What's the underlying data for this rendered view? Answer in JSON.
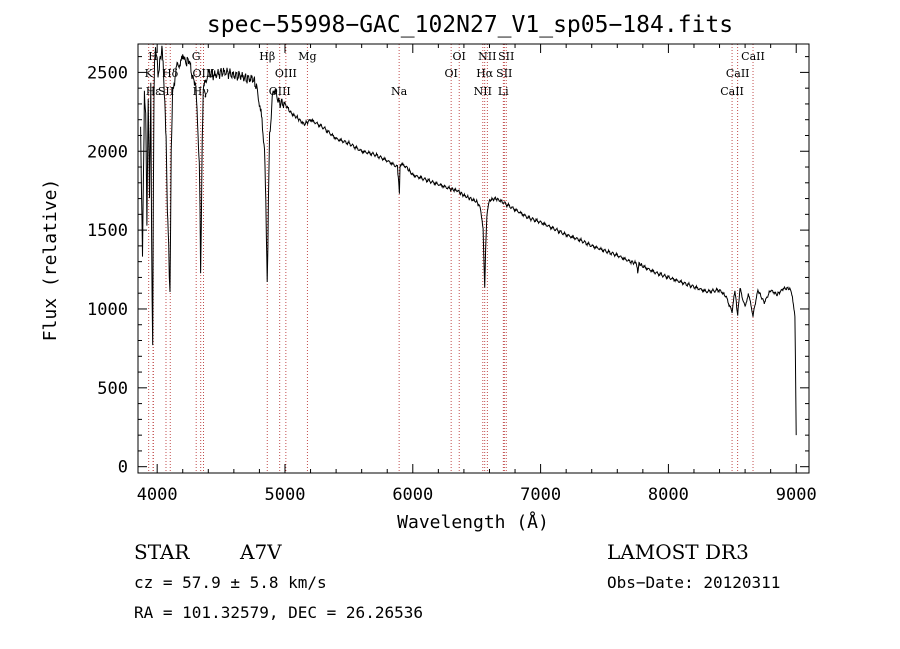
{
  "chart_data": {
    "type": "line",
    "title": "spec−55998−GAC_102N27_V1_sp05−184.fits",
    "xlabel": "Wavelength (Å)",
    "ylabel": "Flux (relative)",
    "xlim": [
      3850,
      9100
    ],
    "ylim": [
      -40,
      2680
    ],
    "xticks": [
      4000,
      5000,
      6000,
      7000,
      8000,
      9000
    ],
    "xtick_labels": [
      "4000",
      "5000",
      "6000",
      "7000",
      "8000",
      "9000"
    ],
    "yticks": [
      0,
      500,
      1000,
      1500,
      2000,
      2500
    ],
    "ytick_labels": [
      "0",
      "500",
      "1000",
      "1500",
      "2000",
      "2500"
    ],
    "series": [
      {
        "name": "flux",
        "x": [
          3870,
          3885,
          3890,
          3900,
          3910,
          3920,
          3930,
          3940,
          3950,
          3960,
          3965,
          3970,
          3975,
          3980,
          3990,
          4000,
          4010,
          4020,
          4030,
          4040,
          4050,
          4060,
          4070,
          4080,
          4090,
          4095,
          4100,
          4105,
          4110,
          4120,
          4140,
          4160,
          4180,
          4200,
          4220,
          4250,
          4280,
          4300,
          4320,
          4330,
          4335,
          4340,
          4345,
          4350,
          4360,
          4380,
          4400,
          4450,
          4500,
          4550,
          4600,
          4650,
          4700,
          4750,
          4780,
          4800,
          4820,
          4840,
          4850,
          4855,
          4861,
          4866,
          4870,
          4880,
          4900,
          4920,
          4950,
          5000,
          5050,
          5100,
          5150,
          5200,
          5300,
          5400,
          5500,
          5600,
          5700,
          5800,
          5880,
          5890,
          5895,
          5900,
          5910,
          5950,
          6000,
          6100,
          6200,
          6300,
          6350,
          6400,
          6450,
          6500,
          6530,
          6550,
          6555,
          6563,
          6570,
          6580,
          6600,
          6650,
          6700,
          6800,
          6900,
          7000,
          7100,
          7200,
          7300,
          7400,
          7500,
          7600,
          7700,
          7750,
          7760,
          7770,
          7800,
          7900,
          8000,
          8100,
          8200,
          8300,
          8400,
          8450,
          8498,
          8520,
          8542,
          8560,
          8600,
          8625,
          8662,
          8700,
          8750,
          8800,
          8850,
          8900,
          8950,
          8970,
          8990,
          9000
        ],
        "y": [
          2180,
          1320,
          1650,
          2350,
          2250,
          1560,
          2350,
          1700,
          2400,
          1050,
          780,
          1680,
          2380,
          2600,
          2640,
          2580,
          2460,
          2580,
          2600,
          2660,
          2480,
          2300,
          2080,
          1620,
          1420,
          1220,
          1120,
          1500,
          2000,
          2350,
          2480,
          2560,
          2540,
          2620,
          2560,
          2580,
          2450,
          2450,
          2100,
          1900,
          1650,
          1200,
          1500,
          1900,
          2400,
          2440,
          2500,
          2480,
          2500,
          2500,
          2480,
          2480,
          2460,
          2460,
          2400,
          2300,
          2200,
          2000,
          1700,
          1450,
          1180,
          1400,
          1700,
          2100,
          2330,
          2400,
          2310,
          2300,
          2240,
          2210,
          2170,
          2200,
          2150,
          2080,
          2050,
          2000,
          1980,
          1940,
          1900,
          1800,
          1720,
          1900,
          1920,
          1900,
          1850,
          1820,
          1790,
          1760,
          1750,
          1720,
          1700,
          1680,
          1640,
          1500,
          1350,
          1140,
          1380,
          1600,
          1690,
          1700,
          1680,
          1630,
          1580,
          1550,
          1510,
          1470,
          1440,
          1400,
          1370,
          1340,
          1300,
          1290,
          1230,
          1290,
          1270,
          1230,
          1200,
          1170,
          1140,
          1110,
          1120,
          1080,
          980,
          1120,
          960,
          1130,
          1010,
          1100,
          960,
          1120,
          1040,
          1120,
          1090,
          1130,
          1130,
          1080,
          950,
          200
        ]
      }
    ],
    "line_labels": [
      {
        "name": "K",
        "wl": 3934,
        "row": 1
      },
      {
        "name": "H",
        "wl": 3968,
        "row": 0
      },
      {
        "name": "Hε",
        "wl": 3970,
        "row": 2
      },
      {
        "name": "SII",
        "wl": 4069,
        "row": 2
      },
      {
        "name": "Hδ",
        "wl": 4102,
        "row": 1
      },
      {
        "name": "G",
        "wl": 4305,
        "row": 0
      },
      {
        "name": "Hγ",
        "wl": 4341,
        "row": 2
      },
      {
        "name": "OIII",
        "wl": 4363,
        "row": 1
      },
      {
        "name": "Hβ",
        "wl": 4861,
        "row": 0
      },
      {
        "name": "OIII",
        "wl": 4959,
        "row": 2
      },
      {
        "name": "OIII",
        "wl": 5007,
        "row": 1
      },
      {
        "name": "Mg",
        "wl": 5175,
        "row": 0
      },
      {
        "name": "Na",
        "wl": 5893,
        "row": 2
      },
      {
        "name": "OI",
        "wl": 6300,
        "row": 1
      },
      {
        "name": "OI",
        "wl": 6363,
        "row": 0
      },
      {
        "name": "NII",
        "wl": 6548,
        "row": 2
      },
      {
        "name": "Hα",
        "wl": 6563,
        "row": 1
      },
      {
        "name": "NII",
        "wl": 6583,
        "row": 0
      },
      {
        "name": "SII",
        "wl": 6716,
        "row": 1
      },
      {
        "name": "Li",
        "wl": 6708,
        "row": 2
      },
      {
        "name": "SII",
        "wl": 6731,
        "row": 0
      },
      {
        "name": "CaII",
        "wl": 8498,
        "row": 2
      },
      {
        "name": "CaII",
        "wl": 8542,
        "row": 1
      },
      {
        "name": "CaII",
        "wl": 8662,
        "row": 0
      }
    ]
  },
  "info": {
    "object_class": "STAR",
    "subclass": "A7V",
    "survey": "LAMOST DR3",
    "cz": "cz = 57.9 ± 5.8 km/s",
    "obs_date": "Obs−Date: 20120311",
    "coords": "RA = 101.32579, DEC =  26.26536"
  },
  "colors": {
    "line_marker": "#b22222",
    "spectrum": "#000000",
    "axes": "#000000"
  }
}
